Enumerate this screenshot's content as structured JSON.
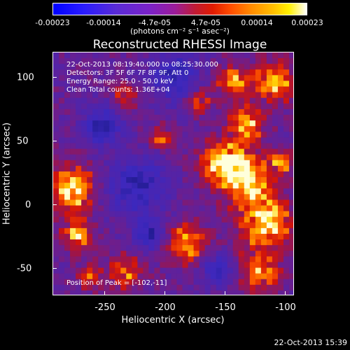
{
  "colorbar": {
    "ticks": [
      "-0.00023",
      "-0.00014",
      "-4.7e-05",
      "4.7e-05",
      "0.00014",
      "0.00023"
    ],
    "unit": "(photons cm⁻² s⁻¹ asec⁻²)"
  },
  "title": "Reconstructed RHESSI Image",
  "annotation": {
    "time": "22-Oct-2013 08:19:40.000 to 08:25:30.000",
    "detectors": "Detectors: 3F 5F 6F 7F 8F 9F, Att 0",
    "energy": "Energy Range: 25.0 - 50.0 keV",
    "method": "Clean     Total counts: 1.36E+04",
    "peak": "Position of Peak = [-102,-11]"
  },
  "xaxis": {
    "label": "Heliocentric X (arcsec)",
    "ticks": [
      "-250",
      "-200",
      "-150",
      "-100"
    ]
  },
  "yaxis": {
    "label": "Heliocentric Y (arcsec)",
    "ticks": [
      "100",
      "50",
      "0",
      "-50"
    ]
  },
  "timestamp": "22-Oct-2013 15:39"
}
